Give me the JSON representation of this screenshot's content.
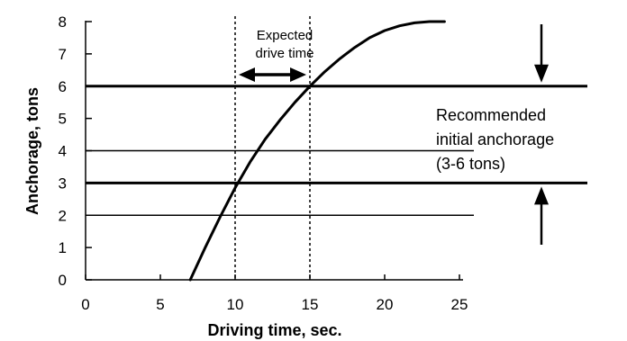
{
  "chart_data": {
    "type": "line",
    "xlabel": "Driving time, sec.",
    "ylabel": "Anchorage, tons",
    "xlim": [
      0,
      25
    ],
    "ylim": [
      0,
      8
    ],
    "x_ticks": [
      0,
      5,
      10,
      15,
      20,
      25
    ],
    "y_ticks": [
      0,
      1,
      2,
      3,
      4,
      5,
      6,
      7,
      8
    ],
    "grid": false,
    "series": [
      {
        "x": [
          7,
          8,
          9,
          10,
          11,
          12,
          13,
          14,
          15,
          16,
          17,
          18,
          19,
          20,
          21,
          22,
          23,
          24
        ],
        "y": [
          0,
          1.0,
          1.95,
          2.85,
          3.65,
          4.35,
          4.95,
          5.5,
          6.0,
          6.45,
          6.85,
          7.2,
          7.5,
          7.72,
          7.87,
          7.96,
          8.0,
          8.0
        ]
      }
    ],
    "reference_lines": {
      "bold_y": [
        3,
        6
      ],
      "thin_y": [
        2,
        4
      ],
      "dashed_x": [
        10,
        15
      ]
    },
    "annotations": {
      "expected_drive_time_line1": "Expected",
      "expected_drive_time_line2": "drive time",
      "recommended_line1": "Recommended",
      "recommended_line2": "initial anchorage",
      "recommended_line3": "(3-6 tons)"
    }
  }
}
